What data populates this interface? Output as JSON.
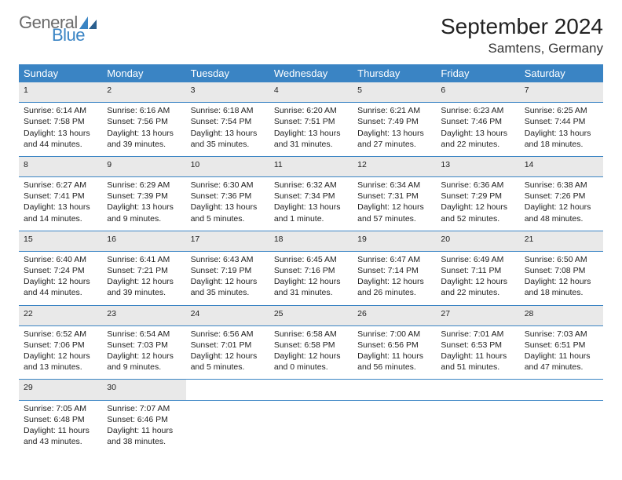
{
  "brand": {
    "part1": "General",
    "part2": "Blue",
    "part1_color": "#6b6b6b",
    "part2_color": "#3a84c4"
  },
  "title": "September 2024",
  "location": "Samtens, Germany",
  "theme": {
    "header_bg": "#3a84c4",
    "header_fg": "#ffffff",
    "daynum_bg": "#e9e9e9",
    "rule_color": "#3a84c4",
    "body_bg": "#ffffff",
    "text_color": "#222222"
  },
  "typography": {
    "title_fontsize": 28,
    "location_fontsize": 17,
    "dayheader_fontsize": 13,
    "daynum_fontsize": 12,
    "cell_fontsize": 10.5
  },
  "day_headers": [
    "Sunday",
    "Monday",
    "Tuesday",
    "Wednesday",
    "Thursday",
    "Friday",
    "Saturday"
  ],
  "weeks": [
    [
      {
        "n": "1",
        "sunrise": "6:14 AM",
        "sunset": "7:58 PM",
        "dl1": "Daylight: 13 hours",
        "dl2": "and 44 minutes."
      },
      {
        "n": "2",
        "sunrise": "6:16 AM",
        "sunset": "7:56 PM",
        "dl1": "Daylight: 13 hours",
        "dl2": "and 39 minutes."
      },
      {
        "n": "3",
        "sunrise": "6:18 AM",
        "sunset": "7:54 PM",
        "dl1": "Daylight: 13 hours",
        "dl2": "and 35 minutes."
      },
      {
        "n": "4",
        "sunrise": "6:20 AM",
        "sunset": "7:51 PM",
        "dl1": "Daylight: 13 hours",
        "dl2": "and 31 minutes."
      },
      {
        "n": "5",
        "sunrise": "6:21 AM",
        "sunset": "7:49 PM",
        "dl1": "Daylight: 13 hours",
        "dl2": "and 27 minutes."
      },
      {
        "n": "6",
        "sunrise": "6:23 AM",
        "sunset": "7:46 PM",
        "dl1": "Daylight: 13 hours",
        "dl2": "and 22 minutes."
      },
      {
        "n": "7",
        "sunrise": "6:25 AM",
        "sunset": "7:44 PM",
        "dl1": "Daylight: 13 hours",
        "dl2": "and 18 minutes."
      }
    ],
    [
      {
        "n": "8",
        "sunrise": "6:27 AM",
        "sunset": "7:41 PM",
        "dl1": "Daylight: 13 hours",
        "dl2": "and 14 minutes."
      },
      {
        "n": "9",
        "sunrise": "6:29 AM",
        "sunset": "7:39 PM",
        "dl1": "Daylight: 13 hours",
        "dl2": "and 9 minutes."
      },
      {
        "n": "10",
        "sunrise": "6:30 AM",
        "sunset": "7:36 PM",
        "dl1": "Daylight: 13 hours",
        "dl2": "and 5 minutes."
      },
      {
        "n": "11",
        "sunrise": "6:32 AM",
        "sunset": "7:34 PM",
        "dl1": "Daylight: 13 hours",
        "dl2": "and 1 minute."
      },
      {
        "n": "12",
        "sunrise": "6:34 AM",
        "sunset": "7:31 PM",
        "dl1": "Daylight: 12 hours",
        "dl2": "and 57 minutes."
      },
      {
        "n": "13",
        "sunrise": "6:36 AM",
        "sunset": "7:29 PM",
        "dl1": "Daylight: 12 hours",
        "dl2": "and 52 minutes."
      },
      {
        "n": "14",
        "sunrise": "6:38 AM",
        "sunset": "7:26 PM",
        "dl1": "Daylight: 12 hours",
        "dl2": "and 48 minutes."
      }
    ],
    [
      {
        "n": "15",
        "sunrise": "6:40 AM",
        "sunset": "7:24 PM",
        "dl1": "Daylight: 12 hours",
        "dl2": "and 44 minutes."
      },
      {
        "n": "16",
        "sunrise": "6:41 AM",
        "sunset": "7:21 PM",
        "dl1": "Daylight: 12 hours",
        "dl2": "and 39 minutes."
      },
      {
        "n": "17",
        "sunrise": "6:43 AM",
        "sunset": "7:19 PM",
        "dl1": "Daylight: 12 hours",
        "dl2": "and 35 minutes."
      },
      {
        "n": "18",
        "sunrise": "6:45 AM",
        "sunset": "7:16 PM",
        "dl1": "Daylight: 12 hours",
        "dl2": "and 31 minutes."
      },
      {
        "n": "19",
        "sunrise": "6:47 AM",
        "sunset": "7:14 PM",
        "dl1": "Daylight: 12 hours",
        "dl2": "and 26 minutes."
      },
      {
        "n": "20",
        "sunrise": "6:49 AM",
        "sunset": "7:11 PM",
        "dl1": "Daylight: 12 hours",
        "dl2": "and 22 minutes."
      },
      {
        "n": "21",
        "sunrise": "6:50 AM",
        "sunset": "7:08 PM",
        "dl1": "Daylight: 12 hours",
        "dl2": "and 18 minutes."
      }
    ],
    [
      {
        "n": "22",
        "sunrise": "6:52 AM",
        "sunset": "7:06 PM",
        "dl1": "Daylight: 12 hours",
        "dl2": "and 13 minutes."
      },
      {
        "n": "23",
        "sunrise": "6:54 AM",
        "sunset": "7:03 PM",
        "dl1": "Daylight: 12 hours",
        "dl2": "and 9 minutes."
      },
      {
        "n": "24",
        "sunrise": "6:56 AM",
        "sunset": "7:01 PM",
        "dl1": "Daylight: 12 hours",
        "dl2": "and 5 minutes."
      },
      {
        "n": "25",
        "sunrise": "6:58 AM",
        "sunset": "6:58 PM",
        "dl1": "Daylight: 12 hours",
        "dl2": "and 0 minutes."
      },
      {
        "n": "26",
        "sunrise": "7:00 AM",
        "sunset": "6:56 PM",
        "dl1": "Daylight: 11 hours",
        "dl2": "and 56 minutes."
      },
      {
        "n": "27",
        "sunrise": "7:01 AM",
        "sunset": "6:53 PM",
        "dl1": "Daylight: 11 hours",
        "dl2": "and 51 minutes."
      },
      {
        "n": "28",
        "sunrise": "7:03 AM",
        "sunset": "6:51 PM",
        "dl1": "Daylight: 11 hours",
        "dl2": "and 47 minutes."
      }
    ],
    [
      {
        "n": "29",
        "sunrise": "7:05 AM",
        "sunset": "6:48 PM",
        "dl1": "Daylight: 11 hours",
        "dl2": "and 43 minutes."
      },
      {
        "n": "30",
        "sunrise": "7:07 AM",
        "sunset": "6:46 PM",
        "dl1": "Daylight: 11 hours",
        "dl2": "and 38 minutes."
      },
      null,
      null,
      null,
      null,
      null
    ]
  ],
  "labels": {
    "sunrise_prefix": "Sunrise: ",
    "sunset_prefix": "Sunset: "
  }
}
